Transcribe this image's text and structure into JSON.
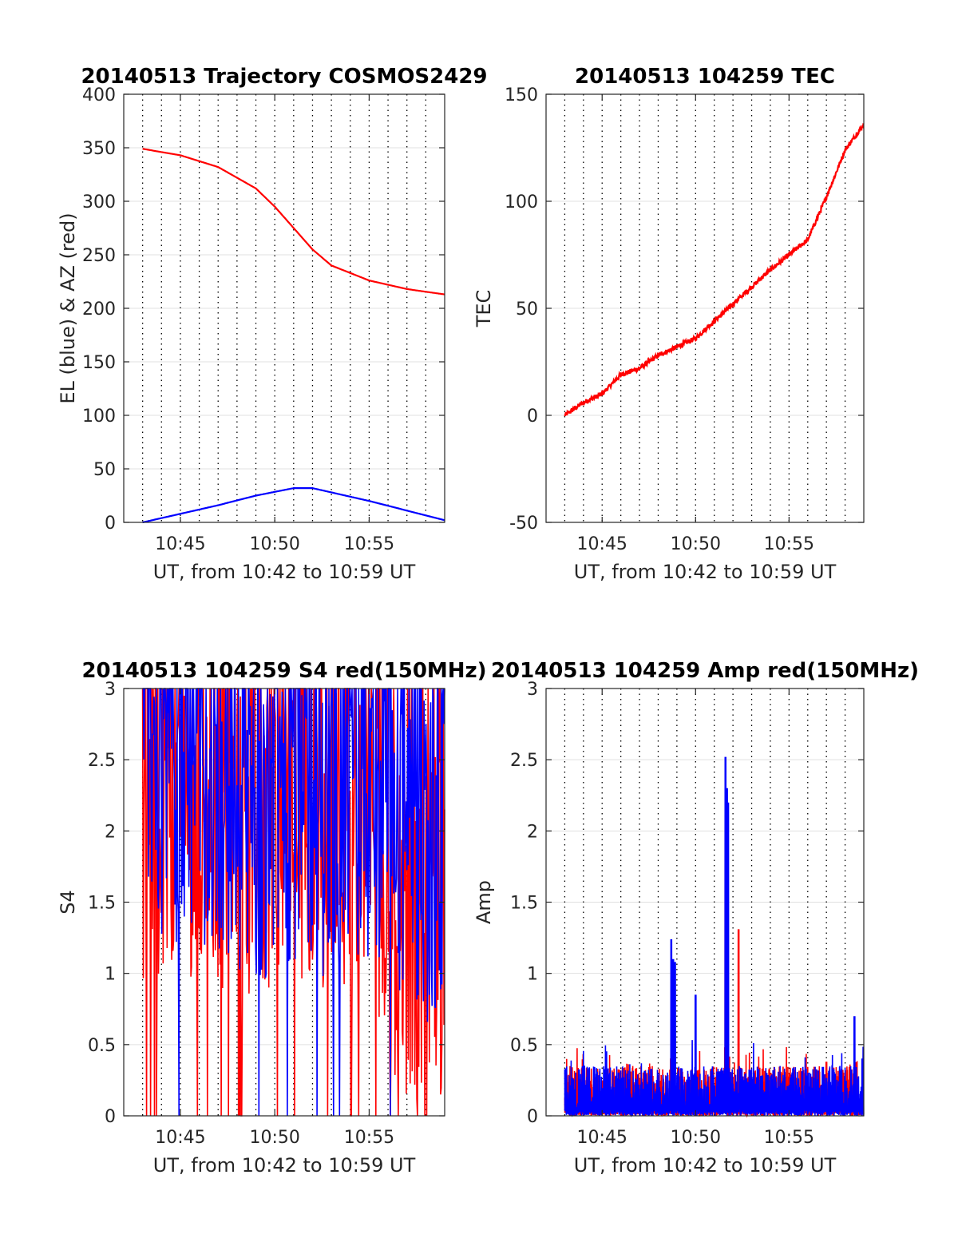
{
  "x_range_minutes": [
    10.7,
    10.983
  ],
  "chart_data": [
    {
      "type": "line",
      "title": "20140513 Trajectory COSMOS2429",
      "xlabel": "UT, from 10:42 to 10:59 UT",
      "ylabel": "EL (blue) & AZ (red)",
      "xticks": [
        "10:45",
        "10:50",
        "10:55"
      ],
      "ylim": [
        0,
        400
      ],
      "yticks": [
        "0",
        "50",
        "100",
        "150",
        "200",
        "250",
        "300",
        "350",
        "400"
      ],
      "grid": "x dotted, y solid light",
      "series": [
        {
          "color": "#ff0000",
          "x": [
            "10:43",
            "10:45",
            "10:47",
            "10:49",
            "10:50",
            "10:51",
            "10:52",
            "10:53",
            "10:55",
            "10:57",
            "10:59"
          ],
          "values": [
            349,
            343,
            332,
            312,
            295,
            275,
            255,
            240,
            226,
            218,
            213
          ]
        },
        {
          "color": "#0000ff",
          "x": [
            "10:43",
            "10:45",
            "10:47",
            "10:49",
            "10:51",
            "10:52",
            "10:53",
            "10:55",
            "10:57",
            "10:59"
          ],
          "values": [
            0,
            8,
            16,
            25,
            32,
            32,
            28,
            20,
            11,
            2
          ]
        }
      ]
    },
    {
      "type": "line",
      "title": "20140513 104259 TEC",
      "xlabel": "UT, from 10:42 to 10:59 UT",
      "ylabel": "TEC",
      "xticks": [
        "10:45",
        "10:50",
        "10:55"
      ],
      "ylim": [
        -50,
        150
      ],
      "yticks": [
        "-50",
        "0",
        "50",
        "100",
        "150"
      ],
      "grid": "x dotted, y solid light",
      "series": [
        {
          "color": "#ff0000",
          "x": [
            "10:43",
            "10:44",
            "10:45",
            "10:46",
            "10:47",
            "10:48",
            "10:49",
            "10:50",
            "10:51",
            "10:52",
            "10:53",
            "10:54",
            "10:55",
            "10:56",
            "10:57",
            "10:58",
            "10:59"
          ],
          "values": [
            0,
            6,
            10,
            19,
            22,
            28,
            32,
            36,
            44,
            52,
            60,
            68,
            75,
            82,
            102,
            124,
            136
          ]
        }
      ]
    },
    {
      "type": "line",
      "title": "20140513 104259 S4 red(150MHz)",
      "xlabel": "UT, from 10:42 to 10:59 UT",
      "ylabel": "S4",
      "xticks": [
        "10:45",
        "10:50",
        "10:55"
      ],
      "ylim": [
        0,
        3
      ],
      "yticks": [
        "0",
        "0.5",
        "1",
        "1.5",
        "2",
        "2.5",
        "3"
      ],
      "grid": "x dotted, y solid light",
      "series": [
        {
          "color": "#ff0000",
          "x": [
            "10:43",
            "10:45",
            "10:47",
            "10:49",
            "10:51",
            "10:53",
            "10:55",
            "10:57",
            "10:59"
          ],
          "values": [
            2.2,
            2.3,
            2.2,
            2.0,
            2.3,
            2.1,
            2.2,
            1.2,
            1.3
          ]
        },
        {
          "color": "#0000ff",
          "x": [
            "10:43",
            "10:45",
            "10:47",
            "10:49",
            "10:51",
            "10:53",
            "10:55",
            "10:57",
            "10:59"
          ],
          "values": [
            2.6,
            2.5,
            2.4,
            2.2,
            2.4,
            2.2,
            2.3,
            2.0,
            1.9
          ]
        }
      ]
    },
    {
      "type": "line",
      "title": "20140513 104259 Amp red(150MHz)",
      "xlabel": "UT, from 10:42 to 10:59 UT",
      "ylabel": "Amp",
      "xticks": [
        "10:45",
        "10:50",
        "10:55"
      ],
      "ylim": [
        0,
        3
      ],
      "yticks": [
        "0",
        "0.5",
        "1",
        "1.5",
        "2",
        "2.5",
        "3"
      ],
      "grid": "x dotted, y solid light",
      "series": [
        {
          "color": "#ff0000",
          "x": [
            "10:43",
            "10:51.6",
            "10:52.3",
            "10:57",
            "10:59"
          ],
          "values": [
            0.25,
            2.3,
            1.31,
            0.38,
            0.3
          ]
        },
        {
          "color": "#0000ff",
          "x": [
            "10:43",
            "10:48.7",
            "10:50",
            "10:51.6",
            "10:55",
            "10:58.5",
            "10:59"
          ],
          "values": [
            0.25,
            1.24,
            0.85,
            2.52,
            0.5,
            0.7,
            0.3
          ]
        }
      ]
    }
  ]
}
